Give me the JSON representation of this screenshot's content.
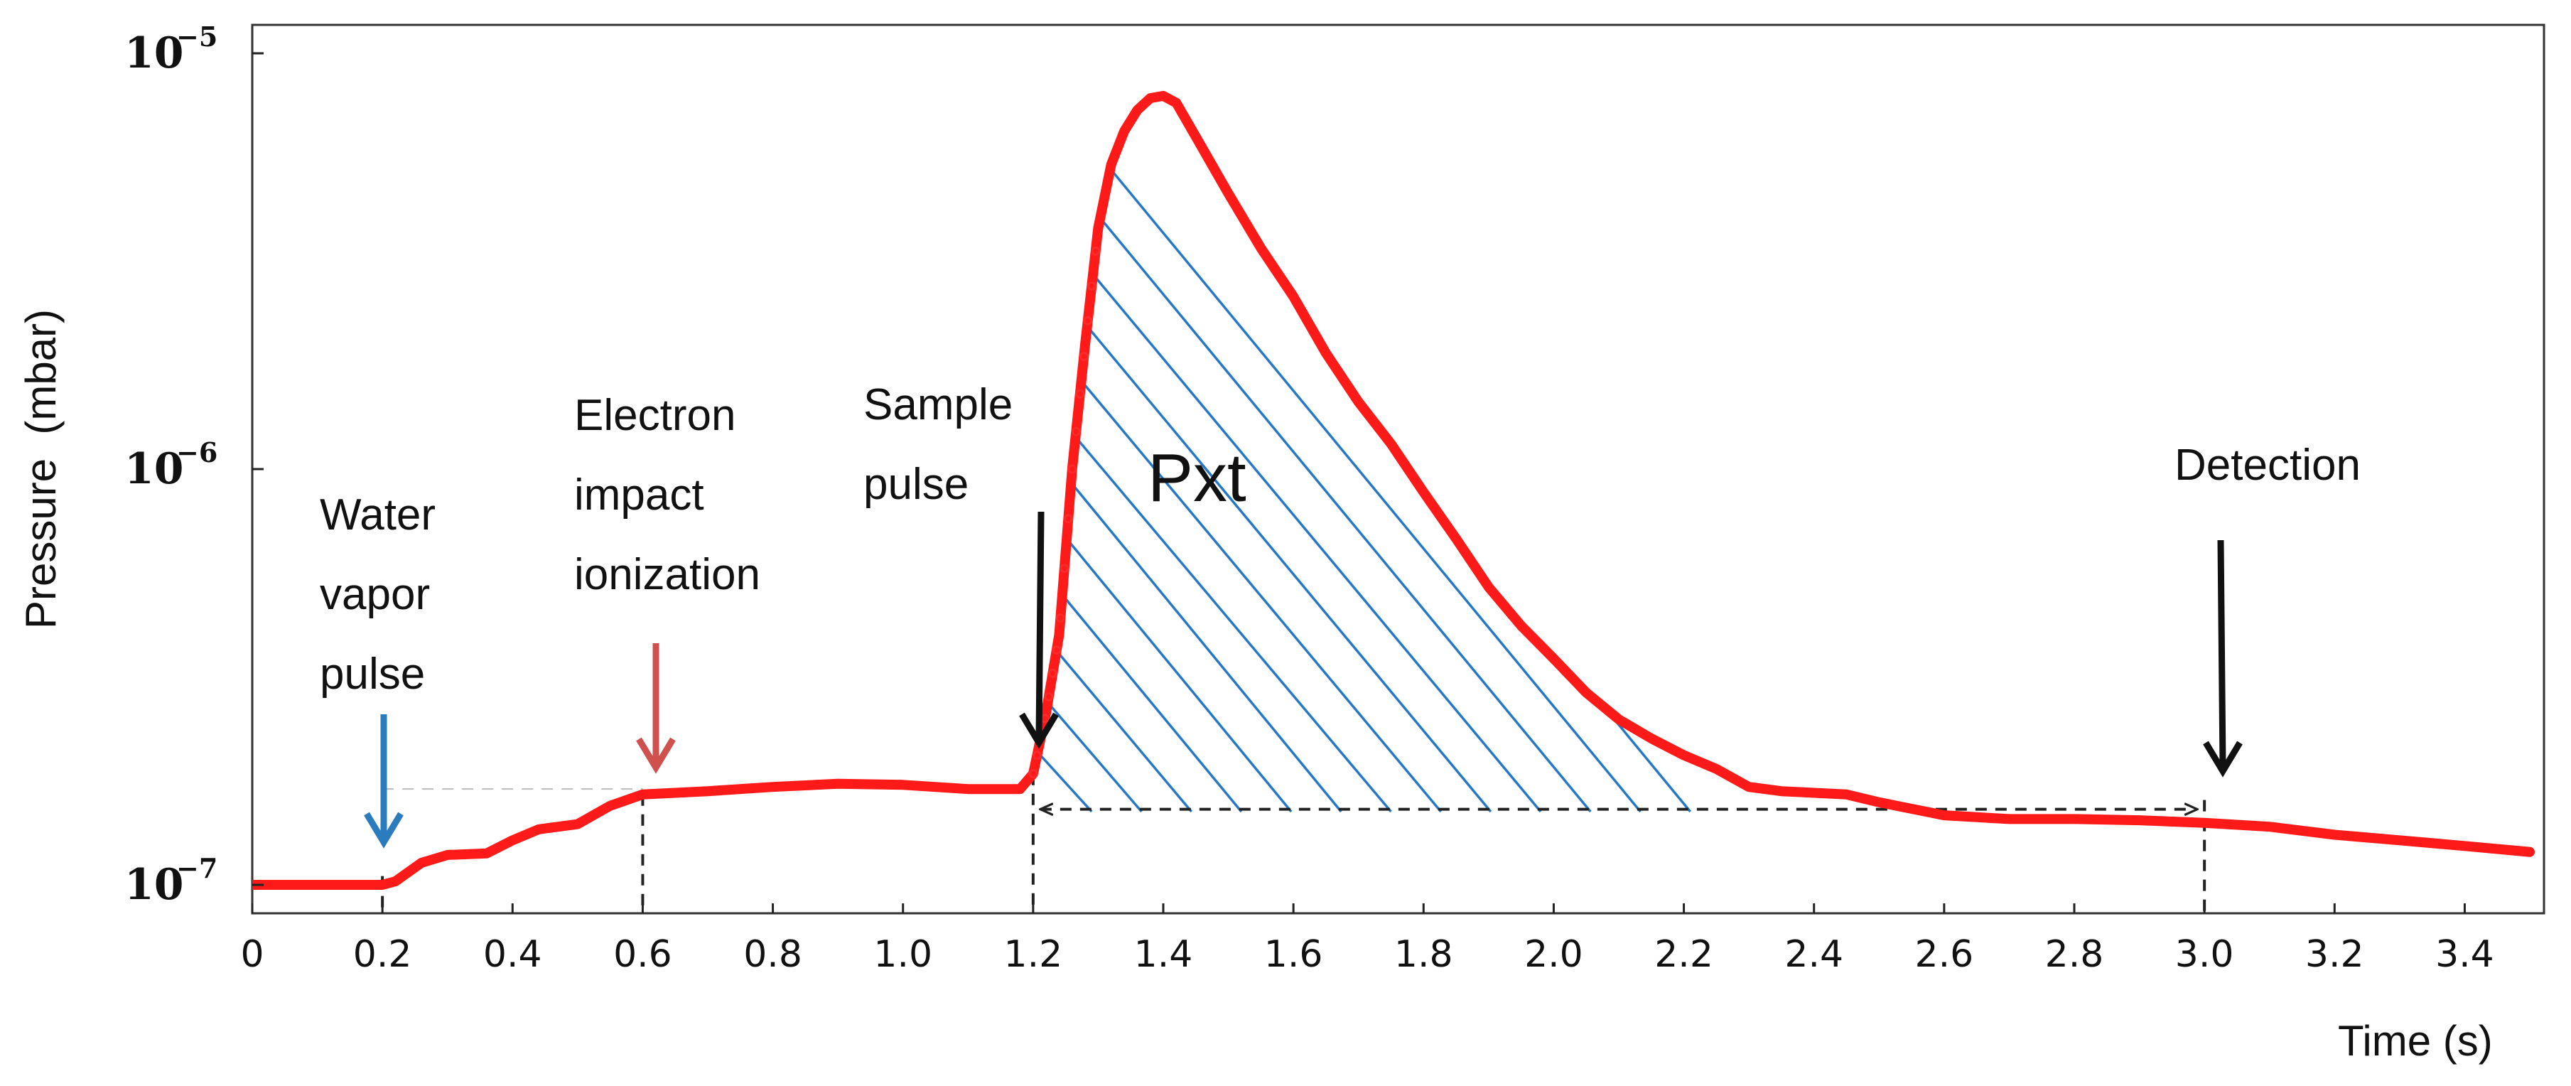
{
  "chart_data": {
    "type": "line",
    "title": "",
    "xlabel": "Time (s)",
    "ylabel": "Pressure  (mbar)",
    "yscale": "log",
    "xlim": [
      0,
      3.5
    ],
    "ylim": [
      1e-07,
      1e-05
    ],
    "x_ticks": [
      "0",
      "0.2",
      "0.4",
      "0.6",
      "0.8",
      "1.0",
      "1.2",
      "1.4",
      "1.6",
      "1.8",
      "2.0",
      "2.2",
      "2.4",
      "2.6",
      "2.8",
      "3.0",
      "3.2",
      "3.4"
    ],
    "y_ticks": [
      {
        "base": "10",
        "exp": "−7",
        "value": 1e-07
      },
      {
        "base": "10",
        "exp": "−6",
        "value": 1e-06
      },
      {
        "base": "10",
        "exp": "−5",
        "value": 1e-05
      }
    ],
    "series": [
      {
        "name": "Pressure",
        "color": "#ff1a1a",
        "points": [
          [
            0.0,
            1e-07
          ],
          [
            0.2,
            1e-07
          ],
          [
            0.22,
            1.02e-07
          ],
          [
            0.26,
            1.13e-07
          ],
          [
            0.3,
            1.18e-07
          ],
          [
            0.36,
            1.19e-07
          ],
          [
            0.4,
            1.28e-07
          ],
          [
            0.44,
            1.36e-07
          ],
          [
            0.5,
            1.4e-07
          ],
          [
            0.55,
            1.55e-07
          ],
          [
            0.6,
            1.65e-07
          ],
          [
            0.7,
            1.68e-07
          ],
          [
            0.8,
            1.72e-07
          ],
          [
            0.9,
            1.75e-07
          ],
          [
            1.0,
            1.74e-07
          ],
          [
            1.1,
            1.7e-07
          ],
          [
            1.18,
            1.7e-07
          ],
          [
            1.2,
            1.85e-07
          ],
          [
            1.22,
            2.6e-07
          ],
          [
            1.24,
            4e-07
          ],
          [
            1.26,
            1e-06
          ],
          [
            1.28,
            2e-06
          ],
          [
            1.3,
            3.8e-06
          ],
          [
            1.32,
            5.4e-06
          ],
          [
            1.34,
            6.5e-06
          ],
          [
            1.36,
            7.3e-06
          ],
          [
            1.38,
            7.8e-06
          ],
          [
            1.4,
            7.9e-06
          ],
          [
            1.42,
            7.6e-06
          ],
          [
            1.45,
            6.3e-06
          ],
          [
            1.5,
            4.6e-06
          ],
          [
            1.55,
            3.4e-06
          ],
          [
            1.6,
            2.6e-06
          ],
          [
            1.65,
            1.9e-06
          ],
          [
            1.7,
            1.45e-06
          ],
          [
            1.75,
            1.15e-06
          ],
          [
            1.8,
            8.8e-07
          ],
          [
            1.85,
            6.8e-07
          ],
          [
            1.9,
            5.2e-07
          ],
          [
            1.95,
            4.2e-07
          ],
          [
            2.0,
            3.5e-07
          ],
          [
            2.05,
            2.9e-07
          ],
          [
            2.1,
            2.5e-07
          ],
          [
            2.15,
            2.25e-07
          ],
          [
            2.2,
            2.05e-07
          ],
          [
            2.25,
            1.9e-07
          ],
          [
            2.3,
            1.72e-07
          ],
          [
            2.35,
            1.68e-07
          ],
          [
            2.45,
            1.65e-07
          ],
          [
            2.5,
            1.58e-07
          ],
          [
            2.6,
            1.47e-07
          ],
          [
            2.7,
            1.44e-07
          ],
          [
            2.8,
            1.44e-07
          ],
          [
            2.9,
            1.43e-07
          ],
          [
            3.0,
            1.41e-07
          ],
          [
            3.1,
            1.38e-07
          ],
          [
            3.2,
            1.32e-07
          ],
          [
            3.3,
            1.28e-07
          ],
          [
            3.4,
            1.24e-07
          ],
          [
            3.5,
            1.2e-07
          ]
        ]
      }
    ],
    "shaded_region": {
      "label": "Pxt",
      "x_start": 1.2,
      "x_end": 2.2,
      "pattern": "hatch",
      "color": "#2878c8"
    },
    "annotations": [
      {
        "name": "water-vapor",
        "lines": [
          "Water",
          "vapor",
          "pulse"
        ],
        "x": 0.2,
        "arrow_color": "#2b7bbf"
      },
      {
        "name": "electron-impact",
        "lines": [
          "Electron",
          "impact",
          "ionization"
        ],
        "x": 0.6,
        "arrow_color": "#d0504d"
      },
      {
        "name": "sample-pulse",
        "lines": [
          "Sample",
          "pulse"
        ],
        "x": 1.2,
        "arrow_color": "#111111"
      },
      {
        "name": "detection",
        "lines": [
          "Detection"
        ],
        "x": 3.0,
        "arrow_color": "#111111"
      }
    ],
    "interval": {
      "x_start": 1.2,
      "x_end": 3.0,
      "style": "dashed-double-arrow"
    }
  }
}
